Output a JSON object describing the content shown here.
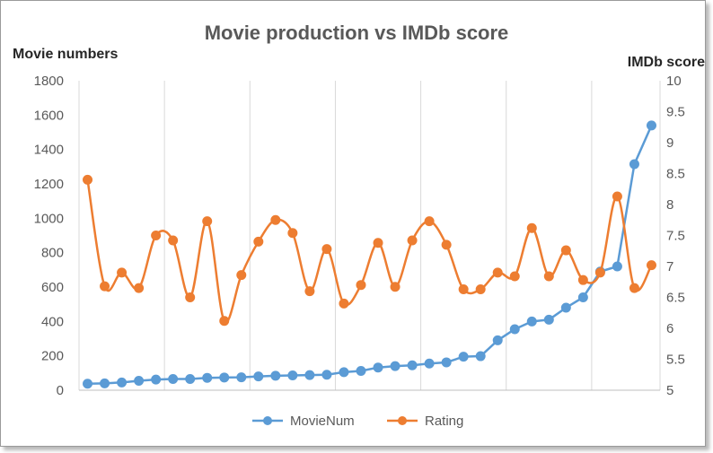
{
  "chart_data": {
    "type": "line",
    "title": "Movie production vs IMDb score",
    "y_left_label": "Movie numbers",
    "y_right_label": "IMDb score",
    "y_left_lim": [
      0,
      1800
    ],
    "y_left_ticks": [
      "0",
      "200",
      "400",
      "600",
      "800",
      "1000",
      "1200",
      "1400",
      "1600",
      "1800"
    ],
    "y_right_lim": [
      5,
      10
    ],
    "y_right_ticks": [
      "5",
      "5.5",
      "6",
      "6.5",
      "7",
      "7.5",
      "8",
      "8.5",
      "9",
      "9.5",
      "10"
    ],
    "grid": "vertical",
    "legend": "bottom",
    "num_points": 34,
    "series": [
      {
        "name": "MovieNum",
        "axis": "left",
        "color": "#5b9bd5",
        "smooth": false,
        "values": [
          38,
          40,
          45,
          55,
          62,
          65,
          65,
          72,
          74,
          75,
          80,
          84,
          86,
          88,
          90,
          105,
          112,
          132,
          140,
          145,
          155,
          162,
          195,
          198,
          290,
          355,
          400,
          410,
          480,
          540,
          690,
          720,
          1315,
          1540
        ]
      },
      {
        "name": "Rating",
        "axis": "right",
        "color": "#ed7d31",
        "smooth": true,
        "values": [
          8.4,
          6.68,
          6.9,
          6.65,
          7.5,
          7.42,
          6.5,
          7.73,
          6.12,
          6.86,
          7.4,
          7.75,
          7.54,
          6.6,
          7.28,
          6.4,
          6.7,
          7.38,
          6.67,
          7.42,
          7.73,
          7.35,
          6.63,
          6.63,
          6.9,
          6.84,
          7.62,
          6.84,
          7.26,
          6.78,
          6.9,
          8.13,
          6.65,
          7.02
        ]
      }
    ]
  }
}
